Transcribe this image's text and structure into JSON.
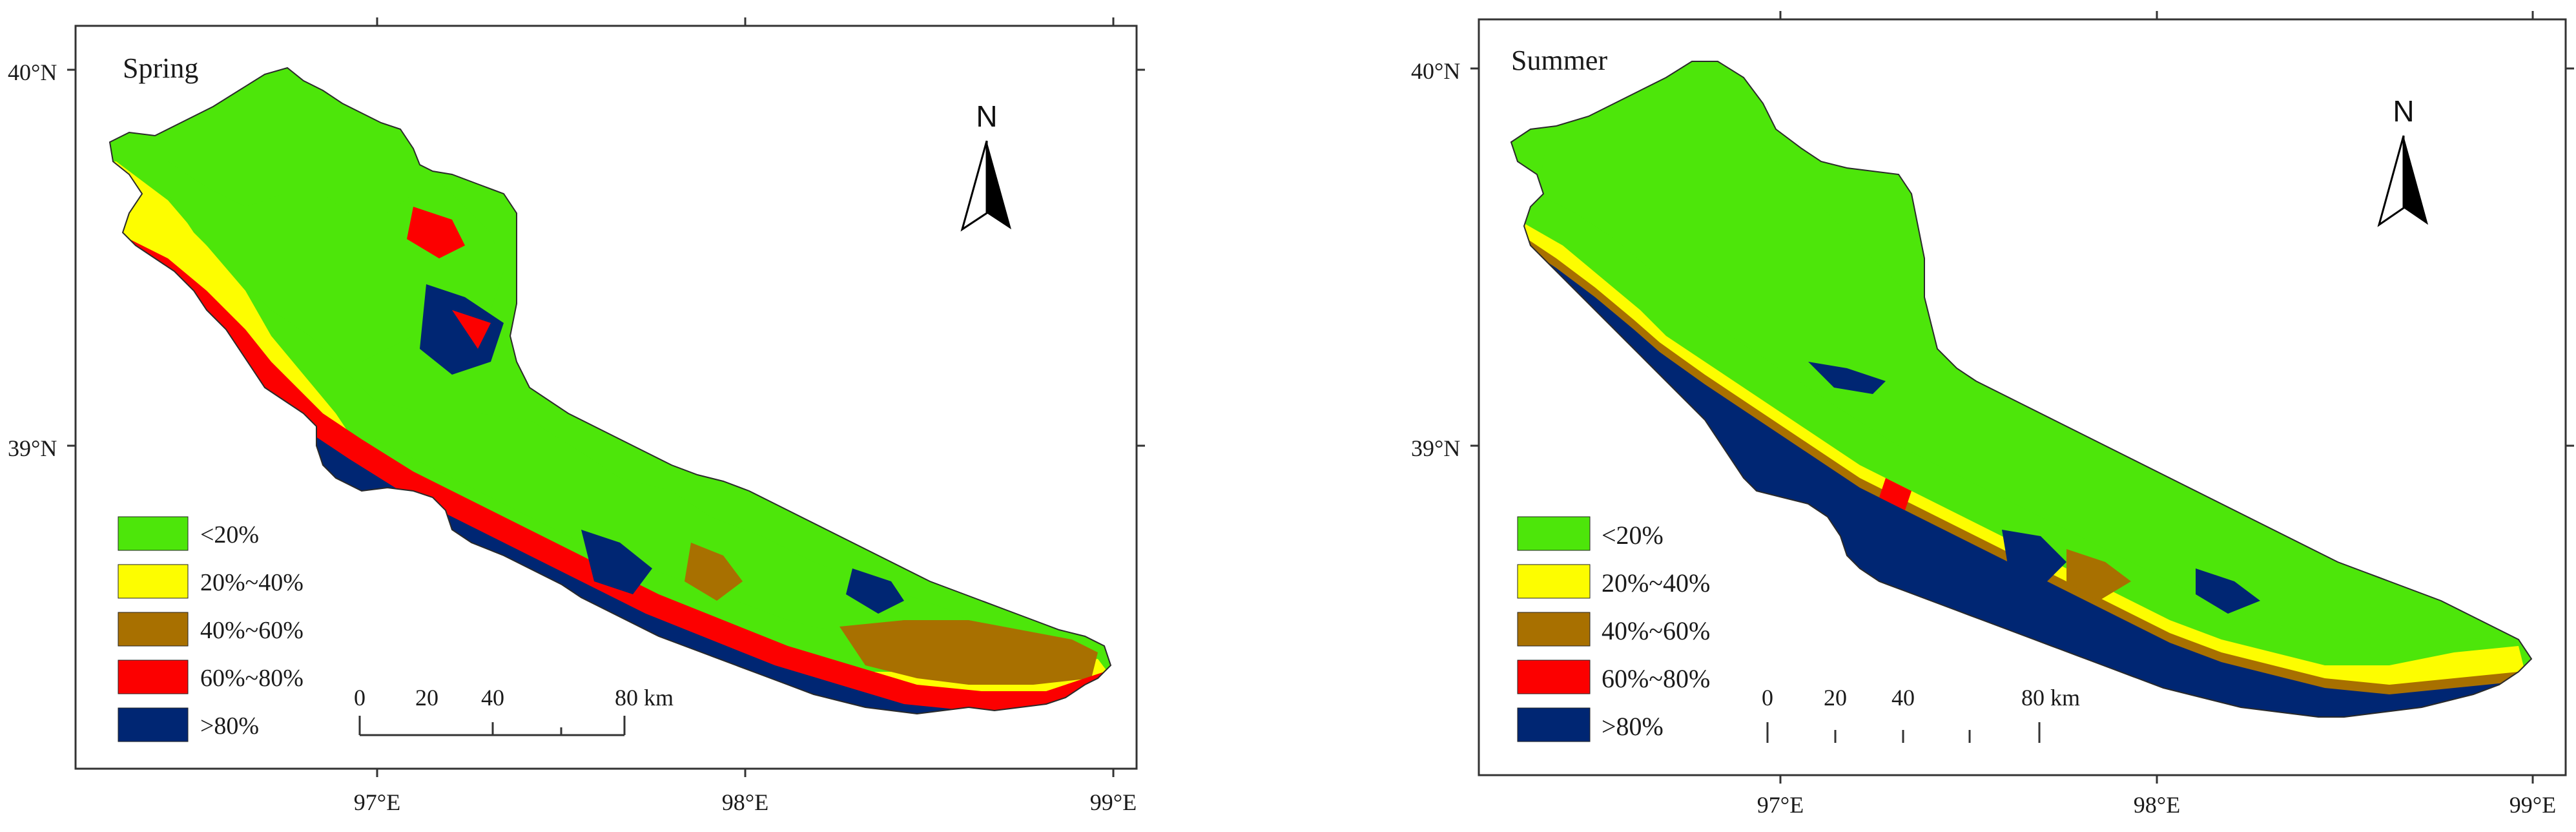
{
  "colors": {
    "lt20": "#4de60a",
    "c20_40": "#fdfd00",
    "c40_60": "#a87000",
    "c60_80": "#fc0000",
    "gt80": "#002673",
    "frame": "#333333"
  },
  "legend": [
    {
      "label": "<20%",
      "color": "#4de60a"
    },
    {
      "label": "20%~40%",
      "color": "#fdfd00"
    },
    {
      "label": "40%~60%",
      "color": "#a87000"
    },
    {
      "label": "60%~80%",
      "color": "#fc0000"
    },
    {
      "label": ">80%",
      "color": "#002673"
    }
  ],
  "maps": [
    {
      "title": "Spring",
      "lat_labels": [
        "40°N",
        "39°N"
      ],
      "lon_labels": [
        "97°E",
        "98°E",
        "99°E"
      ],
      "north": "N",
      "scale_labels": [
        "0",
        "20",
        "40",
        "80 km"
      ]
    },
    {
      "title": "Summer",
      "lat_labels": [
        "40°N",
        "39°N"
      ],
      "lon_labels": [
        "97°E",
        "98°E",
        "99°E"
      ],
      "north": "N",
      "scale_labels": [
        "0",
        "20",
        "40",
        "80 km"
      ]
    }
  ]
}
